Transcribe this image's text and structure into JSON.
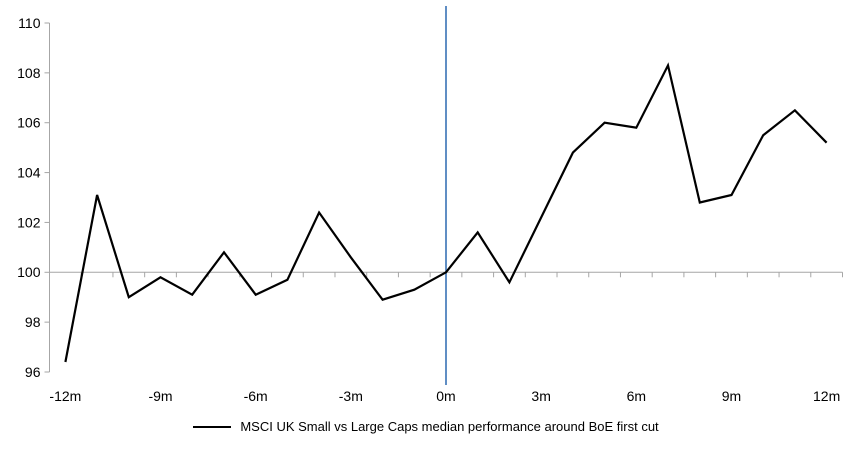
{
  "chart_data": {
    "type": "line",
    "title": "",
    "months": [
      -12,
      -11,
      -10,
      -9,
      -8,
      -7,
      -6,
      -5,
      -4,
      -3,
      -2,
      -1,
      0,
      1,
      2,
      3,
      4,
      5,
      6,
      7,
      8,
      9,
      10,
      11,
      12
    ],
    "series": [
      {
        "name": "MSCI UK Small vs Large Caps median performance around BoE first cut",
        "color": "#000000",
        "values": [
          96.4,
          103.1,
          99.0,
          99.8,
          99.1,
          100.8,
          99.1,
          99.7,
          102.4,
          100.6,
          98.9,
          99.3,
          100.0,
          101.6,
          99.6,
          102.2,
          104.8,
          106.0,
          105.8,
          108.3,
          102.8,
          103.1,
          105.5,
          106.5,
          105.2
        ]
      }
    ],
    "x_tick_labels": [
      "-12m",
      "-9m",
      "-6m",
      "-3m",
      "0m",
      "3m",
      "6m",
      "9m",
      "12m"
    ],
    "x_label_step_months": 3,
    "y_ticks": [
      96,
      98,
      100,
      102,
      104,
      106,
      108,
      110
    ],
    "ylim": [
      96,
      110
    ],
    "x_axis_cross_value": 100,
    "grid": "off",
    "event_line": {
      "at_month": 0,
      "color": "#4f81bd"
    },
    "colors": {
      "axis": "#a6a6a6",
      "line": "#000000",
      "text": "#000000"
    },
    "legend_position": "bottom"
  },
  "legend": {
    "label": "MSCI UK Small vs Large Caps median performance around BoE first cut"
  }
}
